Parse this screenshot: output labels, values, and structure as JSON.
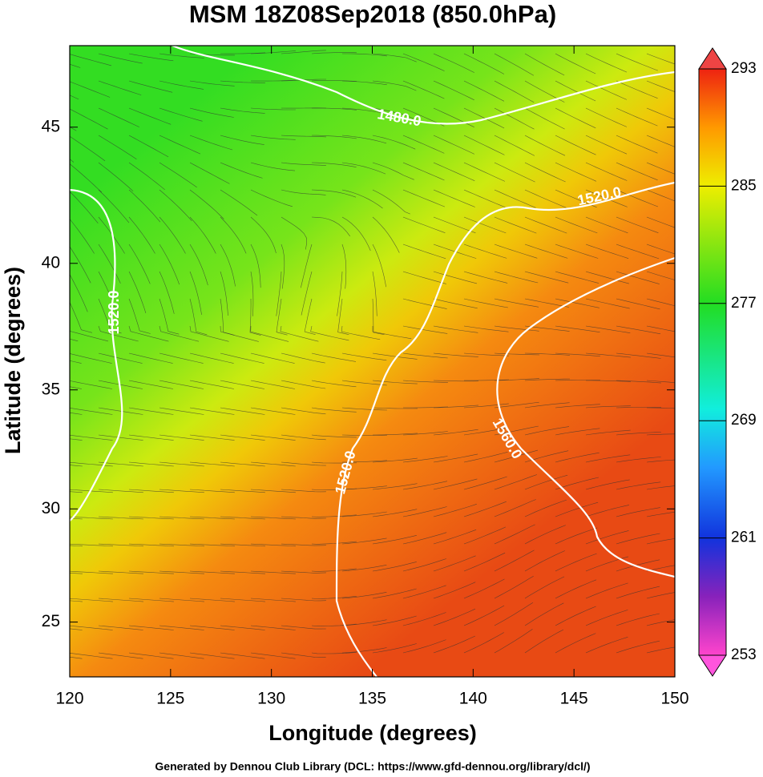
{
  "map": {
    "title": "MSM 18Z08Sep2018 (850.0hPa)",
    "xlabel": "Longitude (degrees)",
    "ylabel": "Latitude  (degrees)",
    "xlim": [
      120,
      150
    ],
    "ylim": [
      22.5,
      47.8
    ],
    "xticks": [
      120,
      125,
      130,
      135,
      140,
      145,
      150
    ],
    "yticks": [
      25,
      30,
      35,
      40,
      45
    ],
    "colorbar": {
      "lim": [
        253,
        293
      ],
      "ticks": [
        253,
        261,
        269,
        277,
        285,
        293
      ]
    },
    "contour_labels": [
      "1480.0",
      "1520.0",
      "1520.0",
      "1520.0",
      "1560.0"
    ],
    "footer": "Generated by Dennou Club Library (DCL: https://www.gfd-dennou.org/library/dcl/)"
  }
}
